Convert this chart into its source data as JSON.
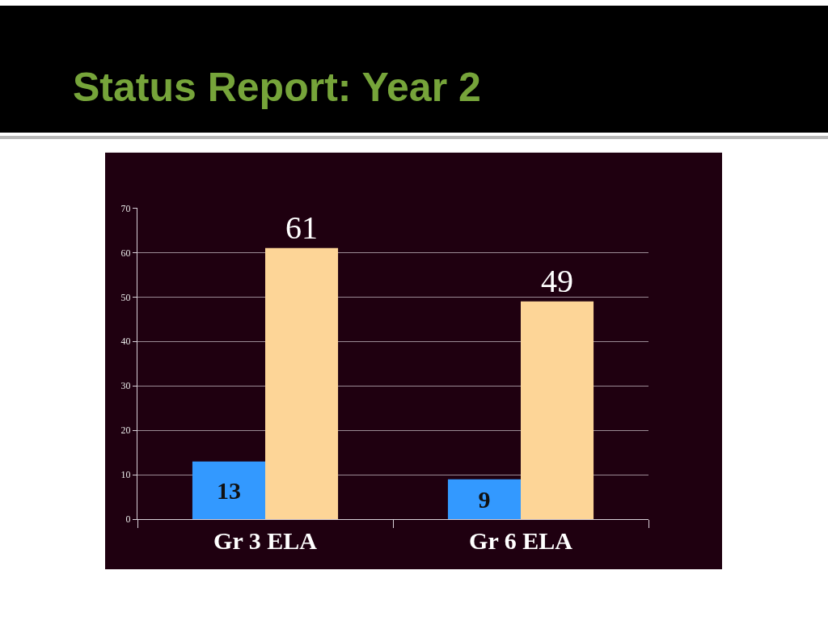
{
  "chart_data": {
    "type": "bar",
    "title": "Status Report: Year 2",
    "categories": [
      "Gr 3 ELA",
      "Gr 6 ELA"
    ],
    "series": [
      {
        "color": "#3399ff",
        "values": [
          13,
          9
        ]
      },
      {
        "color": "#fdd597",
        "values": [
          61,
          49
        ]
      }
    ],
    "ylim": [
      0,
      70
    ],
    "yticks": [
      0,
      10,
      20,
      30,
      40,
      50,
      60,
      70
    ],
    "grid": "y",
    "data_labels": true
  }
}
